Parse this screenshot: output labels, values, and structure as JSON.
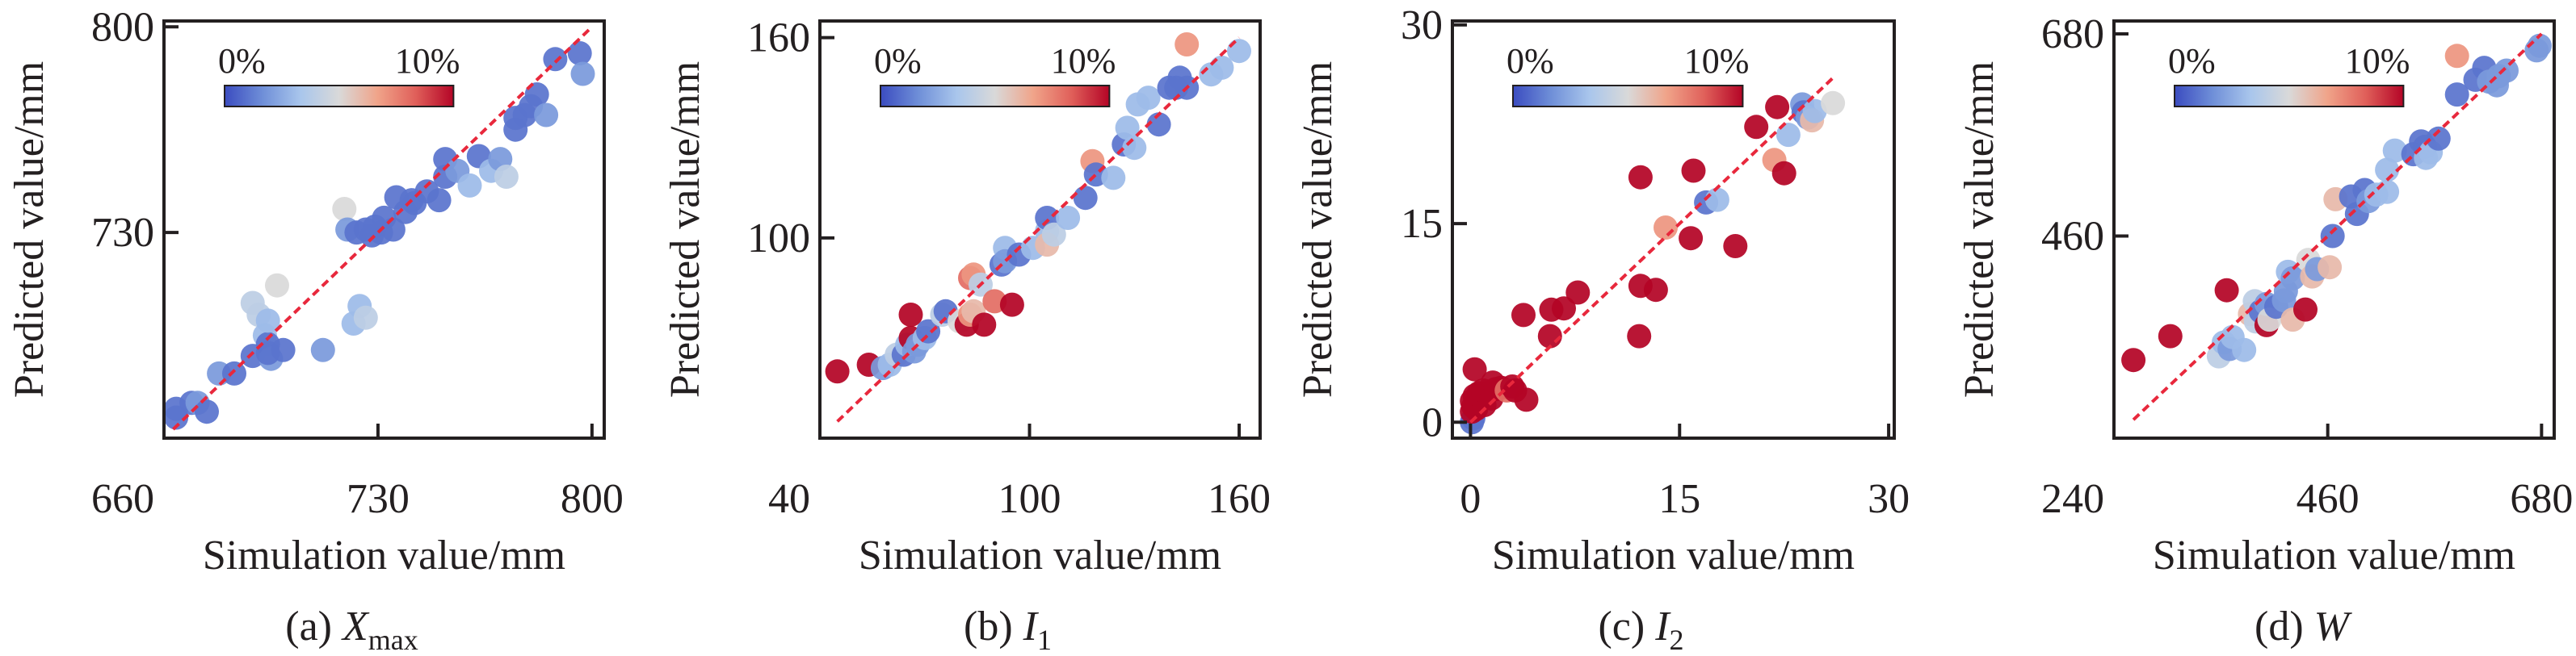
{
  "figure": {
    "colorbar": {
      "min_label": "0%",
      "max_label": "10%",
      "range": [
        0,
        10
      ],
      "stops": [
        "#3b4cc0",
        "#6f8fd8",
        "#a9c6ec",
        "#d9d9d9",
        "#f0a48a",
        "#e0605a",
        "#b40426"
      ]
    },
    "fit_line_color": "#e8283c"
  },
  "chart_data": [
    {
      "id": "a",
      "type": "scatter",
      "caption_prefix": "(a) ",
      "caption_var": "X",
      "caption_sub": "max",
      "xlabel": "Simulation value/mm",
      "ylabel": "Predicted value/mm",
      "xlim": [
        660,
        804
      ],
      "ylim": [
        660,
        802
      ],
      "xticks": [
        730,
        800
      ],
      "yticks": [
        730,
        800
      ],
      "xtick_labels": [
        "660",
        "730",
        "800"
      ],
      "ytick_labels": [
        "730",
        "800"
      ],
      "corner_label": "660",
      "fit_line": [
        [
          663,
          663
        ],
        [
          800,
          800
        ]
      ],
      "points": [
        [
          664,
          670,
          1
        ],
        [
          664,
          667,
          1
        ],
        [
          669,
          672,
          1
        ],
        [
          671,
          672,
          2
        ],
        [
          674,
          669,
          1
        ],
        [
          678,
          682,
          2
        ],
        [
          683,
          682,
          1
        ],
        [
          689,
          688,
          1
        ],
        [
          689,
          706,
          4
        ],
        [
          691,
          702,
          4
        ],
        [
          693,
          695,
          3
        ],
        [
          694,
          692,
          1
        ],
        [
          695,
          687,
          2
        ],
        [
          694,
          700,
          3
        ],
        [
          694,
          689,
          1
        ],
        [
          699,
          690,
          1
        ],
        [
          697,
          712,
          5
        ],
        [
          712,
          690,
          2
        ],
        [
          722,
          699,
          3
        ],
        [
          724,
          705,
          3
        ],
        [
          726,
          701,
          4
        ],
        [
          719,
          738,
          5
        ],
        [
          720,
          731,
          2
        ],
        [
          723,
          730,
          1
        ],
        [
          726,
          731,
          1
        ],
        [
          728,
          729,
          1
        ],
        [
          729,
          732,
          1
        ],
        [
          731,
          730,
          1
        ],
        [
          732,
          735,
          1
        ],
        [
          735,
          731,
          1
        ],
        [
          736,
          742,
          1
        ],
        [
          739,
          737,
          1
        ],
        [
          741,
          741,
          1
        ],
        [
          742,
          740,
          1
        ],
        [
          746,
          744,
          1
        ],
        [
          750,
          741,
          1
        ],
        [
          752,
          749,
          1
        ],
        [
          752,
          755,
          1
        ],
        [
          756,
          751,
          2
        ],
        [
          760,
          746,
          3
        ],
        [
          763,
          756,
          1
        ],
        [
          767,
          751,
          3
        ],
        [
          770,
          755,
          2
        ],
        [
          772,
          749,
          4
        ],
        [
          775,
          765,
          1
        ],
        [
          775,
          769,
          1
        ],
        [
          778,
          770,
          1
        ],
        [
          780,
          773,
          1
        ],
        [
          782,
          777,
          1
        ],
        [
          785,
          770,
          2
        ],
        [
          788,
          789,
          1
        ],
        [
          796,
          791,
          1
        ],
        [
          797,
          784,
          2
        ]
      ]
    },
    {
      "id": "b",
      "type": "scatter",
      "caption_prefix": "(b) ",
      "caption_var": "I",
      "caption_sub": "1",
      "xlabel": "Simulation value/mm",
      "ylabel": "Predicted value/mm",
      "xlim": [
        40,
        166
      ],
      "ylim": [
        40,
        165
      ],
      "xticks": [
        100,
        160
      ],
      "yticks": [
        100,
        160
      ],
      "xtick_labels": [
        "40",
        "100",
        "160"
      ],
      "ytick_labels": [
        "100",
        "160"
      ],
      "corner_label": "40",
      "fit_line": [
        [
          45,
          45
        ],
        [
          160,
          160
        ]
      ],
      "points": [
        [
          45,
          60,
          10
        ],
        [
          54,
          62,
          10
        ],
        [
          58,
          61,
          2
        ],
        [
          60,
          62,
          3
        ],
        [
          62,
          65,
          4
        ],
        [
          64,
          65,
          1
        ],
        [
          65,
          68,
          3
        ],
        [
          66,
          77,
          10
        ],
        [
          66,
          70,
          10
        ],
        [
          67,
          66,
          2
        ],
        [
          68,
          68,
          2
        ],
        [
          70,
          70,
          3
        ],
        [
          71,
          72,
          1
        ],
        [
          75,
          77,
          4
        ],
        [
          76,
          78,
          1
        ],
        [
          80,
          75,
          5
        ],
        [
          82,
          74,
          10
        ],
        [
          83,
          77,
          7
        ],
        [
          83,
          88,
          8
        ],
        [
          84,
          89,
          7
        ],
        [
          84,
          78,
          6
        ],
        [
          86,
          86,
          4
        ],
        [
          87,
          74,
          10
        ],
        [
          90,
          81,
          8
        ],
        [
          92,
          92,
          1
        ],
        [
          93,
          97,
          3
        ],
        [
          93,
          93,
          2
        ],
        [
          95,
          80,
          10
        ],
        [
          97,
          95,
          1
        ],
        [
          101,
          97,
          3
        ],
        [
          105,
          102,
          3
        ],
        [
          105,
          98,
          6
        ],
        [
          105,
          106,
          1
        ],
        [
          107,
          101,
          4
        ],
        [
          111,
          106,
          3
        ],
        [
          116,
          112,
          1
        ],
        [
          118,
          123,
          7
        ],
        [
          119,
          119,
          1
        ],
        [
          124,
          118,
          3
        ],
        [
          127,
          128,
          1
        ],
        [
          128,
          133,
          3
        ],
        [
          130,
          127,
          3
        ],
        [
          131,
          140,
          3
        ],
        [
          134,
          142,
          3
        ],
        [
          137,
          134,
          1
        ],
        [
          140,
          145,
          1
        ],
        [
          142,
          145,
          1
        ],
        [
          143,
          148,
          1
        ],
        [
          145,
          145,
          1
        ],
        [
          145,
          158,
          7
        ],
        [
          152,
          149,
          3
        ],
        [
          155,
          151,
          3
        ],
        [
          160,
          156,
          3
        ]
      ]
    },
    {
      "id": "c",
      "type": "scatter",
      "caption_prefix": "(c) ",
      "caption_var": "I",
      "caption_sub": "2",
      "xlabel": "Simulation value/mm",
      "ylabel": "Predicted value/mm",
      "xlim": [
        -1.3,
        30.4
      ],
      "ylim": [
        -1.2,
        30.3
      ],
      "xticks": [
        0,
        15,
        30
      ],
      "yticks": [
        0,
        15,
        30
      ],
      "xtick_labels": [
        "0",
        "15",
        "30"
      ],
      "ytick_labels": [
        "0",
        "15",
        "30"
      ],
      "corner_label": "",
      "fit_line": [
        [
          0,
          0
        ],
        [
          26,
          26
        ]
      ],
      "points": [
        [
          0.1,
          0.0,
          1
        ],
        [
          0.2,
          0.3,
          1
        ],
        [
          0.1,
          0.8,
          10
        ],
        [
          0.2,
          1.2,
          10
        ],
        [
          0.1,
          1.6,
          10
        ],
        [
          0.3,
          2.0,
          10
        ],
        [
          0.4,
          1.0,
          10
        ],
        [
          0.5,
          1.5,
          10
        ],
        [
          0.6,
          2.2,
          10
        ],
        [
          0.8,
          1.8,
          10
        ],
        [
          1.0,
          1.3,
          10
        ],
        [
          0.9,
          2.4,
          10
        ],
        [
          1.2,
          2.2,
          10
        ],
        [
          1.5,
          1.8,
          10
        ],
        [
          1.6,
          3.0,
          10
        ],
        [
          1.8,
          2.5,
          10
        ],
        [
          2.2,
          2.6,
          10
        ],
        [
          2.6,
          2.4,
          8
        ],
        [
          3.0,
          2.7,
          10
        ],
        [
          3.2,
          2.4,
          10
        ],
        [
          0.3,
          4.0,
          10
        ],
        [
          3.8,
          8.1,
          10
        ],
        [
          4.0,
          1.7,
          10
        ],
        [
          5.7,
          6.5,
          10
        ],
        [
          5.8,
          8.5,
          10
        ],
        [
          6.7,
          8.6,
          10
        ],
        [
          7.7,
          9.8,
          10
        ],
        [
          12.1,
          6.5,
          10
        ],
        [
          12.2,
          10.3,
          10
        ],
        [
          12.2,
          18.5,
          10
        ],
        [
          13.3,
          10.0,
          10
        ],
        [
          14.0,
          14.7,
          7
        ],
        [
          15.8,
          13.9,
          10
        ],
        [
          16.0,
          19.0,
          10
        ],
        [
          16.9,
          16.6,
          1
        ],
        [
          17.7,
          16.8,
          3
        ],
        [
          19.0,
          13.3,
          10
        ],
        [
          20.5,
          22.3,
          10
        ],
        [
          22.0,
          23.8,
          10
        ],
        [
          21.8,
          19.8,
          7
        ],
        [
          22.5,
          18.8,
          10
        ],
        [
          22.8,
          21.7,
          3
        ],
        [
          23.8,
          24.0,
          2
        ],
        [
          23.9,
          23.4,
          1
        ],
        [
          24.2,
          23.0,
          2
        ],
        [
          24.5,
          22.8,
          6
        ],
        [
          24.7,
          23.5,
          3
        ],
        [
          26.0,
          24.1,
          5
        ]
      ]
    },
    {
      "id": "d",
      "type": "scatter",
      "caption_prefix": "(d) ",
      "caption_var": "W",
      "caption_sub": "",
      "xlabel": "Simulation value/mm",
      "ylabel": "Predicted value/mm",
      "xlim": [
        240,
        693
      ],
      "ylim": [
        240,
        694
      ],
      "xticks": [
        460,
        680
      ],
      "yticks": [
        460,
        680
      ],
      "xtick_labels": [
        "240",
        "460",
        "680"
      ],
      "ytick_labels": [
        "460",
        "680"
      ],
      "corner_label": "240",
      "fit_line": [
        [
          260,
          260
        ],
        [
          680,
          680
        ]
      ],
      "points": [
        [
          260,
          325,
          10
        ],
        [
          298,
          351,
          10
        ],
        [
          348,
          329,
          4
        ],
        [
          353,
          344,
          3
        ],
        [
          359,
          337,
          2
        ],
        [
          362,
          350,
          3
        ],
        [
          374,
          336,
          3
        ],
        [
          356,
          401,
          10
        ],
        [
          380,
          375,
          6
        ],
        [
          385,
          389,
          4
        ],
        [
          386,
          367,
          4
        ],
        [
          391,
          378,
          1
        ],
        [
          397,
          363,
          10
        ],
        [
          397,
          386,
          2
        ],
        [
          400,
          369,
          5
        ],
        [
          407,
          383,
          1
        ],
        [
          415,
          390,
          2
        ],
        [
          417,
          400,
          2
        ],
        [
          419,
          421,
          3
        ],
        [
          424,
          414,
          2
        ],
        [
          424,
          369,
          6
        ],
        [
          437,
          380,
          10
        ],
        [
          440,
          434,
          5
        ],
        [
          444,
          416,
          6
        ],
        [
          449,
          424,
          2
        ],
        [
          462,
          426,
          6
        ],
        [
          465,
          460,
          1
        ],
        [
          468,
          500,
          6
        ],
        [
          484,
          503,
          1
        ],
        [
          490,
          484,
          1
        ],
        [
          498,
          510,
          1
        ],
        [
          502,
          498,
          2
        ],
        [
          510,
          505,
          3
        ],
        [
          521,
          532,
          3
        ],
        [
          521,
          508,
          3
        ],
        [
          529,
          553,
          3
        ],
        [
          548,
          549,
          1
        ],
        [
          556,
          563,
          1
        ],
        [
          560,
          557,
          1
        ],
        [
          561,
          545,
          3
        ],
        [
          566,
          551,
          3
        ],
        [
          574,
          566,
          1
        ],
        [
          593,
          656,
          7
        ],
        [
          593,
          614,
          1
        ],
        [
          612,
          630,
          1
        ],
        [
          621,
          643,
          1
        ],
        [
          626,
          628,
          2
        ],
        [
          634,
          624,
          2
        ],
        [
          636,
          634,
          2
        ],
        [
          644,
          640,
          2
        ],
        [
          675,
          662,
          2
        ],
        [
          678,
          667,
          2
        ]
      ]
    }
  ]
}
